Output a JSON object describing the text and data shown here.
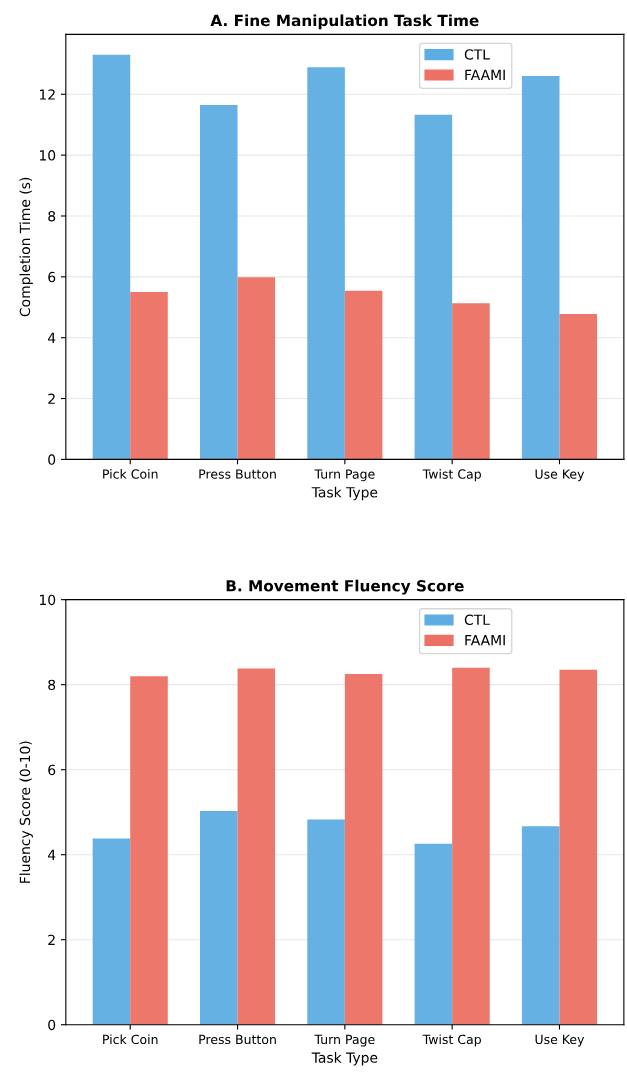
{
  "chart_data": [
    {
      "type": "bar",
      "title": "A. Fine Manipulation Task Time",
      "xlabel": "Task Type",
      "ylabel": "Completion Time (s)",
      "categories": [
        "Pick Coin",
        "Press Button",
        "Turn Page",
        "Twist Cap",
        "Use Key"
      ],
      "series": [
        {
          "name": "CTL",
          "color": "#5dade2",
          "values": [
            13.3,
            11.65,
            12.89,
            11.33,
            12.6
          ]
        },
        {
          "name": "FAAMI",
          "color": "#ec7063",
          "values": [
            5.5,
            5.99,
            5.54,
            5.13,
            4.78
          ]
        }
      ],
      "ylim": [
        0,
        13.97
      ],
      "yticks": [
        0,
        2,
        4,
        6,
        8,
        10,
        12
      ],
      "grid": "y",
      "legend": "top right"
    },
    {
      "type": "bar",
      "title": "B. Movement Fluency Score",
      "xlabel": "Task Type",
      "ylabel": "Fluency Score (0-10)",
      "categories": [
        "Pick Coin",
        "Press Button",
        "Turn Page",
        "Twist Cap",
        "Use Key"
      ],
      "series": [
        {
          "name": "CTL",
          "color": "#5dade2",
          "values": [
            4.38,
            5.03,
            4.83,
            4.26,
            4.67
          ]
        },
        {
          "name": "FAAMI",
          "color": "#ec7063",
          "values": [
            8.2,
            8.38,
            8.25,
            8.4,
            8.35
          ]
        }
      ],
      "ylim": [
        0,
        10
      ],
      "yticks": [
        0,
        2,
        4,
        6,
        8,
        10
      ],
      "grid": "y",
      "legend": "top right"
    }
  ]
}
